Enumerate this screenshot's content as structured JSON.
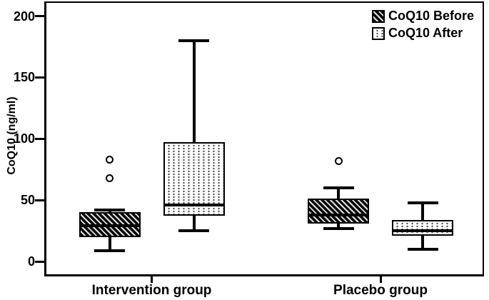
{
  "chart_data": {
    "type": "boxplot",
    "title": "",
    "ylabel": "CoQ10 (ng/ml)",
    "xlabel": "",
    "ylim": [
      0,
      212
    ],
    "yticks": [
      0,
      50,
      100,
      150,
      200
    ],
    "categories": [
      "Intervention group",
      "Placebo group"
    ],
    "grid": "off",
    "legend_position": "top-right",
    "colors": {
      "ink": "#000000",
      "background": "#ffffff"
    },
    "series": [
      {
        "name": "CoQ10 Before",
        "pattern": "diagonal-hatch",
        "boxes": [
          {
            "whislo": 9,
            "q1": 20,
            "med": 29,
            "q3": 40,
            "whishi": 42,
            "fliers": [
              68,
              83
            ]
          },
          {
            "whislo": 27,
            "q1": 31,
            "med": 38,
            "q3": 51,
            "whishi": 60,
            "fliers": [
              82
            ]
          }
        ]
      },
      {
        "name": "CoQ10 After",
        "pattern": "dotted",
        "boxes": [
          {
            "whislo": 25,
            "q1": 37,
            "med": 46,
            "q3": 97,
            "whishi": 180,
            "fliers": []
          },
          {
            "whislo": 10,
            "q1": 21,
            "med": 25,
            "q3": 34,
            "whishi": 48,
            "fliers": []
          }
        ]
      }
    ]
  }
}
